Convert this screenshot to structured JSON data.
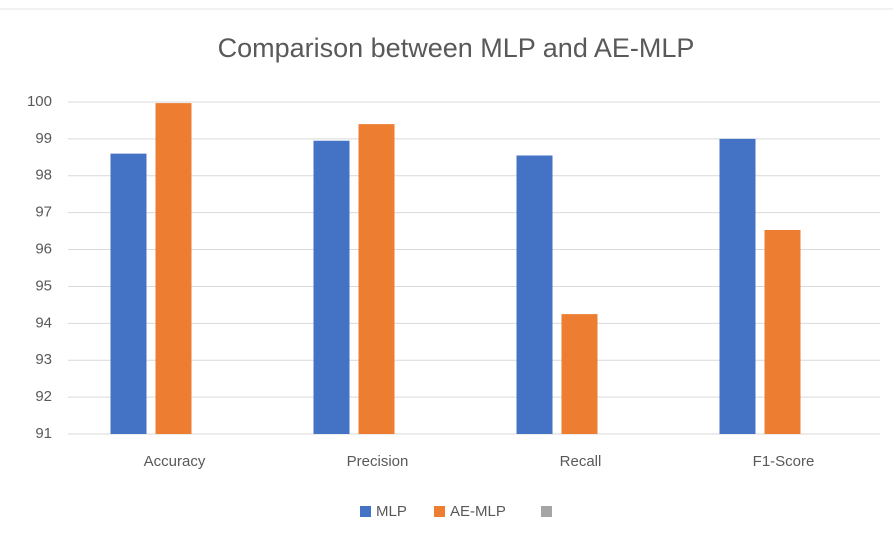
{
  "chart_data": {
    "type": "bar",
    "title": "Comparison between MLP and  AE-MLP",
    "categories": [
      "Accuracy",
      "Precision",
      "Recall",
      "F1-Score"
    ],
    "series": [
      {
        "name": "MLP",
        "color": "#4472c4",
        "values": [
          98.6,
          98.95,
          98.55,
          99.0
        ]
      },
      {
        "name": "AE-MLP",
        "color": "#ed7d31",
        "values": [
          99.97,
          99.4,
          94.25,
          96.53
        ]
      },
      {
        "color": "#a5a5a5",
        "values": [
          null,
          null,
          null,
          null
        ]
      }
    ],
    "ylim": [
      91,
      100
    ],
    "yticks": [
      91,
      92,
      93,
      94,
      95,
      96,
      97,
      98,
      99,
      100
    ],
    "grid": true,
    "legend": "bottom"
  }
}
